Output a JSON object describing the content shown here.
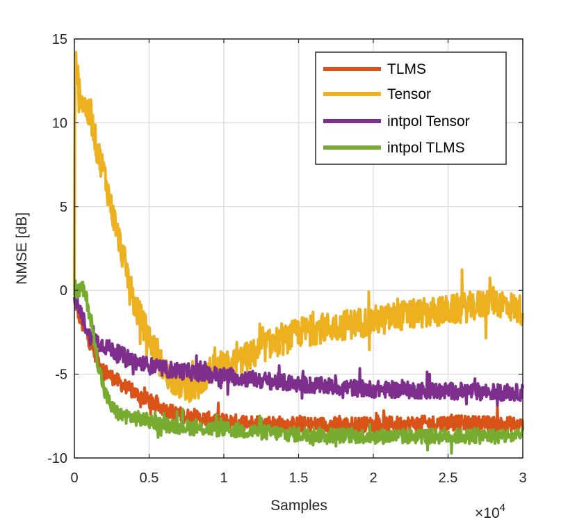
{
  "chart_data": {
    "type": "line",
    "title": "",
    "xlabel": "Samples",
    "ylabel": "NMSE [dB]",
    "x_multiplier_label": "×10",
    "x_multiplier_exponent": "4",
    "xlim": [
      0,
      3
    ],
    "ylim": [
      -10,
      15
    ],
    "xticks": [
      0,
      0.5,
      1,
      1.5,
      2,
      2.5,
      3
    ],
    "xtick_labels": [
      "0",
      "0.5",
      "1",
      "1.5",
      "2",
      "2.5",
      "3"
    ],
    "yticks": [
      -10,
      -5,
      0,
      5,
      10,
      15
    ],
    "ytick_labels": [
      "-10",
      "-5",
      "0",
      "5",
      "10",
      "15"
    ],
    "grid": true,
    "legend_position": "top-right",
    "series": [
      {
        "name": "TLMS",
        "color": "#D95319",
        "noise": 0.45,
        "points": [
          [
            0,
            -0.5
          ],
          [
            0.02,
            -1.2
          ],
          [
            0.05,
            -2.0
          ],
          [
            0.1,
            -3.0
          ],
          [
            0.15,
            -4.0
          ],
          [
            0.2,
            -4.8
          ],
          [
            0.3,
            -5.5
          ],
          [
            0.4,
            -6.1
          ],
          [
            0.5,
            -6.6
          ],
          [
            0.6,
            -7.1
          ],
          [
            0.7,
            -7.4
          ],
          [
            0.8,
            -7.6
          ],
          [
            1.0,
            -7.8
          ],
          [
            1.5,
            -8.0
          ],
          [
            2.0,
            -8.0
          ],
          [
            2.5,
            -7.9
          ],
          [
            3.0,
            -8.0
          ]
        ]
      },
      {
        "name": "Tensor",
        "color": "#EDB120",
        "noise": 0.9,
        "points": [
          [
            0,
            0
          ],
          [
            0.003,
            9.0
          ],
          [
            0.008,
            13.8
          ],
          [
            0.03,
            12.0
          ],
          [
            0.08,
            10.8
          ],
          [
            0.12,
            10.0
          ],
          [
            0.15,
            8.5
          ],
          [
            0.2,
            7.0
          ],
          [
            0.25,
            4.8
          ],
          [
            0.3,
            3.0
          ],
          [
            0.35,
            1.2
          ],
          [
            0.4,
            -0.8
          ],
          [
            0.5,
            -2.8
          ],
          [
            0.6,
            -4.8
          ],
          [
            0.7,
            -5.6
          ],
          [
            0.8,
            -5.8
          ],
          [
            0.85,
            -5.6
          ],
          [
            0.9,
            -4.8
          ],
          [
            1.0,
            -4.6
          ],
          [
            1.1,
            -4.2
          ],
          [
            1.2,
            -3.8
          ],
          [
            1.3,
            -3.2
          ],
          [
            1.4,
            -3.0
          ],
          [
            1.5,
            -2.5
          ],
          [
            1.7,
            -2.2
          ],
          [
            2.0,
            -1.8
          ],
          [
            2.2,
            -1.5
          ],
          [
            2.5,
            -1.2
          ],
          [
            2.7,
            -0.9
          ],
          [
            2.8,
            -0.6
          ],
          [
            3.0,
            -1.2
          ]
        ]
      },
      {
        "name": "intpol Tensor",
        "color": "#7E2F8E",
        "noise": 0.5,
        "points": [
          [
            0,
            -0.4
          ],
          [
            0.05,
            -1.5
          ],
          [
            0.1,
            -2.7
          ],
          [
            0.2,
            -3.3
          ],
          [
            0.3,
            -3.8
          ],
          [
            0.4,
            -4.2
          ],
          [
            0.5,
            -4.5
          ],
          [
            0.6,
            -4.7
          ],
          [
            0.8,
            -4.9
          ],
          [
            1.0,
            -5.1
          ],
          [
            1.5,
            -5.6
          ],
          [
            2.0,
            -5.9
          ],
          [
            2.5,
            -6.0
          ],
          [
            3.0,
            -6.1
          ]
        ]
      },
      {
        "name": "intpol TLMS",
        "color": "#77AC30",
        "noise": 0.45,
        "points": [
          [
            0,
            -0.3
          ],
          [
            0.05,
            0.2
          ],
          [
            0.08,
            -0.5
          ],
          [
            0.12,
            -2.2
          ],
          [
            0.15,
            -4.0
          ],
          [
            0.2,
            -6.0
          ],
          [
            0.25,
            -7.0
          ],
          [
            0.3,
            -7.4
          ],
          [
            0.4,
            -7.6
          ],
          [
            0.5,
            -7.8
          ],
          [
            0.6,
            -8.0
          ],
          [
            0.8,
            -8.2
          ],
          [
            1.0,
            -8.3
          ],
          [
            1.5,
            -8.6
          ],
          [
            2.0,
            -8.7
          ],
          [
            2.5,
            -8.7
          ],
          [
            3.0,
            -8.7
          ]
        ]
      }
    ]
  }
}
